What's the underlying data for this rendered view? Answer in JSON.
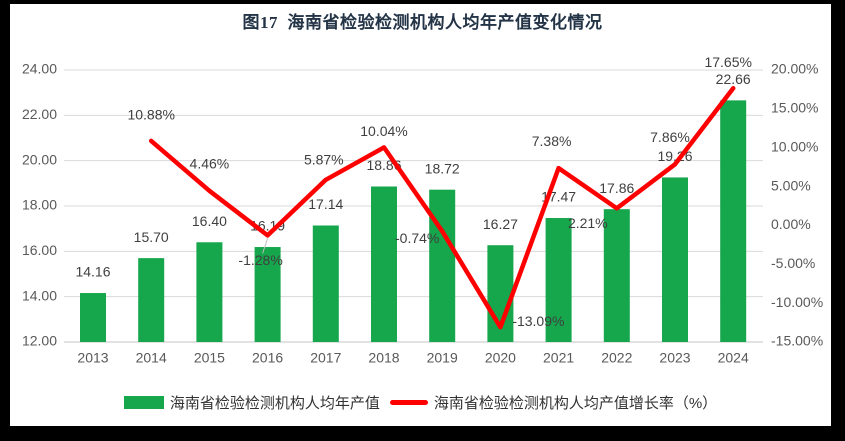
{
  "title": "图17  海南省检验检测机构人均年产值变化情况",
  "legend": {
    "bar_label": "海南省检验检测机构人均年产值",
    "line_label": "海南省检验检测机构人均产值增长率（%）"
  },
  "colors": {
    "bar": "#16A64C",
    "line": "#FE0000",
    "gridline": "#D9D9D9",
    "baseline": "#C6C6C6",
    "axis_text": "#595959",
    "data_label": "#3F3F3F",
    "title_text": "#243447",
    "leader": "#BFBFBF",
    "frame": "#000000",
    "background": "#FFFFFF"
  },
  "chart_data": {
    "type": "bar+line combo",
    "title": "图17  海南省检验检测机构人均年产值变化情况",
    "categories": [
      "2013",
      "2014",
      "2015",
      "2016",
      "2017",
      "2018",
      "2019",
      "2020",
      "2021",
      "2022",
      "2023",
      "2024"
    ],
    "series": [
      {
        "name": "海南省检验检测机构人均年产值",
        "kind": "bar",
        "axis": "left",
        "values": [
          14.16,
          15.7,
          16.4,
          16.19,
          17.14,
          18.86,
          18.72,
          16.27,
          17.47,
          17.86,
          19.26,
          22.66
        ],
        "labels": [
          "14.16",
          "15.70",
          "16.40",
          "16.19",
          "17.14",
          "18.86",
          "18.72",
          "16.27",
          "17.47",
          "17.86",
          "19.26",
          "22.66"
        ]
      },
      {
        "name": "海南省检验检测机构人均产值增长率（%）",
        "kind": "line",
        "axis": "right",
        "values": [
          null,
          10.88,
          4.46,
          -1.28,
          5.87,
          10.04,
          -0.74,
          -13.09,
          7.38,
          2.21,
          7.86,
          17.65
        ],
        "labels": [
          null,
          "10.88%",
          "4.46%",
          "-1.28%",
          "5.87%",
          "10.04%",
          "-0.74%",
          "-13.09%",
          "7.38%",
          "2.21%",
          "7.86%",
          "17.65%"
        ]
      }
    ],
    "left_axis": {
      "min": 12,
      "max": 24,
      "step": 2,
      "ticks": [
        "24.00",
        "22.00",
        "20.00",
        "18.00",
        "16.00",
        "14.00",
        "12.00"
      ]
    },
    "right_axis": {
      "min": -15,
      "max": 20,
      "step": 5,
      "ticks": [
        "20.00%",
        "15.00%",
        "10.00%",
        "5.00%",
        "0.00%",
        "-5.00%",
        "-10.00%",
        "-15.00%"
      ]
    },
    "grid": "horizontal",
    "legend_position": "bottom",
    "bar_label_dy": -20,
    "line_label_offsets": [
      null,
      [
        0,
        -25
      ],
      [
        0,
        -26
      ],
      [
        -7,
        26
      ],
      [
        -2,
        -19
      ],
      [
        0,
        -15
      ],
      [
        -25,
        8
      ],
      [
        38,
        -5
      ],
      [
        -7,
        -26
      ],
      [
        -29,
        16
      ],
      [
        -5,
        -26
      ],
      [
        -5,
        -25
      ]
    ],
    "leader_index": 3
  }
}
